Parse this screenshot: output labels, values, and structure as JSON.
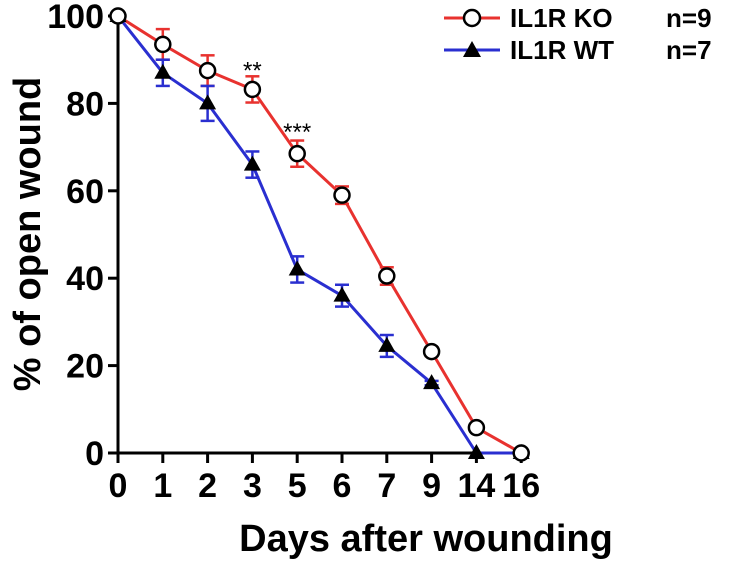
{
  "chart_data": {
    "type": "line",
    "categories": [
      "0",
      "1",
      "2",
      "3",
      "5",
      "6",
      "7",
      "9",
      "14",
      "16"
    ],
    "xlabel": "Days after wounding",
    "ylabel": "% of open wound",
    "ylim": [
      0,
      100
    ],
    "yticks": [
      "0",
      "20",
      "40",
      "60",
      "80",
      "100"
    ],
    "grid": false,
    "legend_position": "top-right",
    "series": [
      {
        "name": "IL1R KO",
        "n_label": "n=9",
        "color": "#e8322f",
        "marker": "open-circle",
        "values": [
          100,
          93.5,
          87.5,
          83.2,
          68.5,
          59,
          40.5,
          23.2,
          5.8,
          0
        ],
        "errors": [
          0,
          3.5,
          3.5,
          3,
          3,
          2,
          2,
          1,
          0.5,
          0
        ]
      },
      {
        "name": "IL1R WT",
        "n_label": "n=7",
        "color": "#2a2fd0",
        "marker": "filled-triangle",
        "values": [
          100,
          87,
          80,
          66,
          42,
          36,
          24.5,
          16,
          0,
          0
        ],
        "errors": [
          0,
          3,
          4,
          3,
          3,
          2.5,
          2.5,
          0.5,
          0,
          0
        ]
      }
    ],
    "annotations": [
      {
        "category": "3",
        "text": "**",
        "y": 87.5
      },
      {
        "category": "5",
        "text": "***",
        "y": 73.5
      }
    ]
  }
}
